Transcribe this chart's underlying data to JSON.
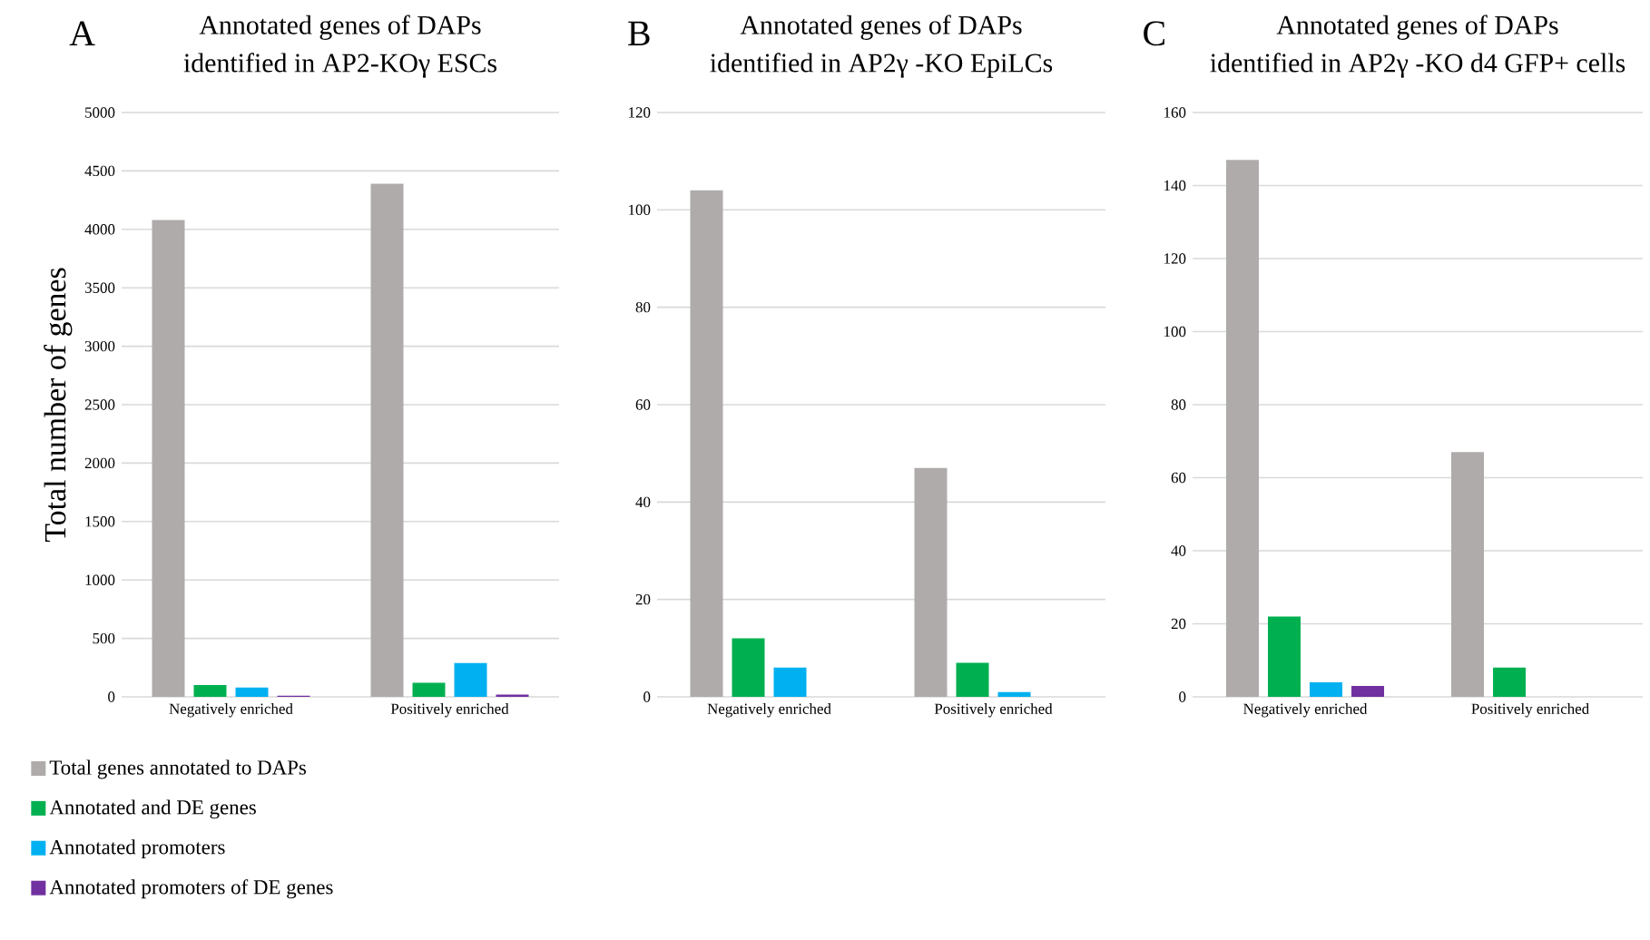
{
  "chart_data": [
    {
      "type": "bar",
      "title": "Annotated genes of DAPs",
      "subtitle": "identified in AP2-KOγ ESCs",
      "ylabel": "Total number of genes",
      "annotations": [
        "A"
      ],
      "categories": [
        "Negatively enriched",
        "Positively enriched"
      ],
      "series": [
        {
          "name": "Total genes annotated to DAPs",
          "color": "#afabab",
          "values": [
            4080,
            4390
          ]
        },
        {
          "name": "Annotated and DE genes",
          "color": "#00b050",
          "values": [
            100,
            120
          ]
        },
        {
          "name": "Annotated promoters",
          "color": "#00b0f0",
          "values": [
            80,
            290
          ]
        },
        {
          "name": "Annotated promoters of DE genes",
          "color": "#7030a0",
          "values": [
            10,
            20
          ]
        }
      ],
      "ylim": [
        0,
        5000
      ],
      "yticks": [
        0,
        500,
        1000,
        1500,
        2000,
        2500,
        3000,
        3500,
        4000,
        4500,
        5000
      ],
      "grid": "y",
      "legend": "bottom"
    },
    {
      "type": "bar",
      "title": "Annotated genes of DAPs",
      "subtitle": "identified in AP2γ -KO EpiLCs",
      "annotations": [
        "B"
      ],
      "categories": [
        "Negatively enriched",
        "Positively enriched"
      ],
      "series": [
        {
          "color": "#afabab",
          "values": [
            104,
            47
          ]
        },
        {
          "color": "#00b050",
          "values": [
            12,
            7
          ]
        },
        {
          "color": "#00b0f0",
          "values": [
            6,
            1
          ]
        },
        {
          "color": "#7030a0",
          "values": [
            0,
            0
          ]
        }
      ],
      "ylim": [
        0,
        120
      ],
      "yticks": [
        0,
        20,
        40,
        60,
        80,
        100,
        120
      ],
      "grid": "y"
    },
    {
      "type": "bar",
      "title": "Annotated genes of DAPs",
      "subtitle": "identified in AP2γ -KO d4 GFP+ cells",
      "annotations": [
        "C"
      ],
      "categories": [
        "Negatively enriched",
        "Positively enriched"
      ],
      "series": [
        {
          "color": "#afabab",
          "values": [
            147,
            67
          ]
        },
        {
          "color": "#00b050",
          "values": [
            22,
            8
          ]
        },
        {
          "color": "#00b0f0",
          "values": [
            4,
            0
          ]
        },
        {
          "color": "#7030a0",
          "values": [
            3,
            0
          ]
        }
      ],
      "ylim": [
        0,
        160
      ],
      "yticks": [
        0,
        20,
        40,
        60,
        80,
        100,
        120,
        140,
        160
      ],
      "grid": "y"
    }
  ]
}
